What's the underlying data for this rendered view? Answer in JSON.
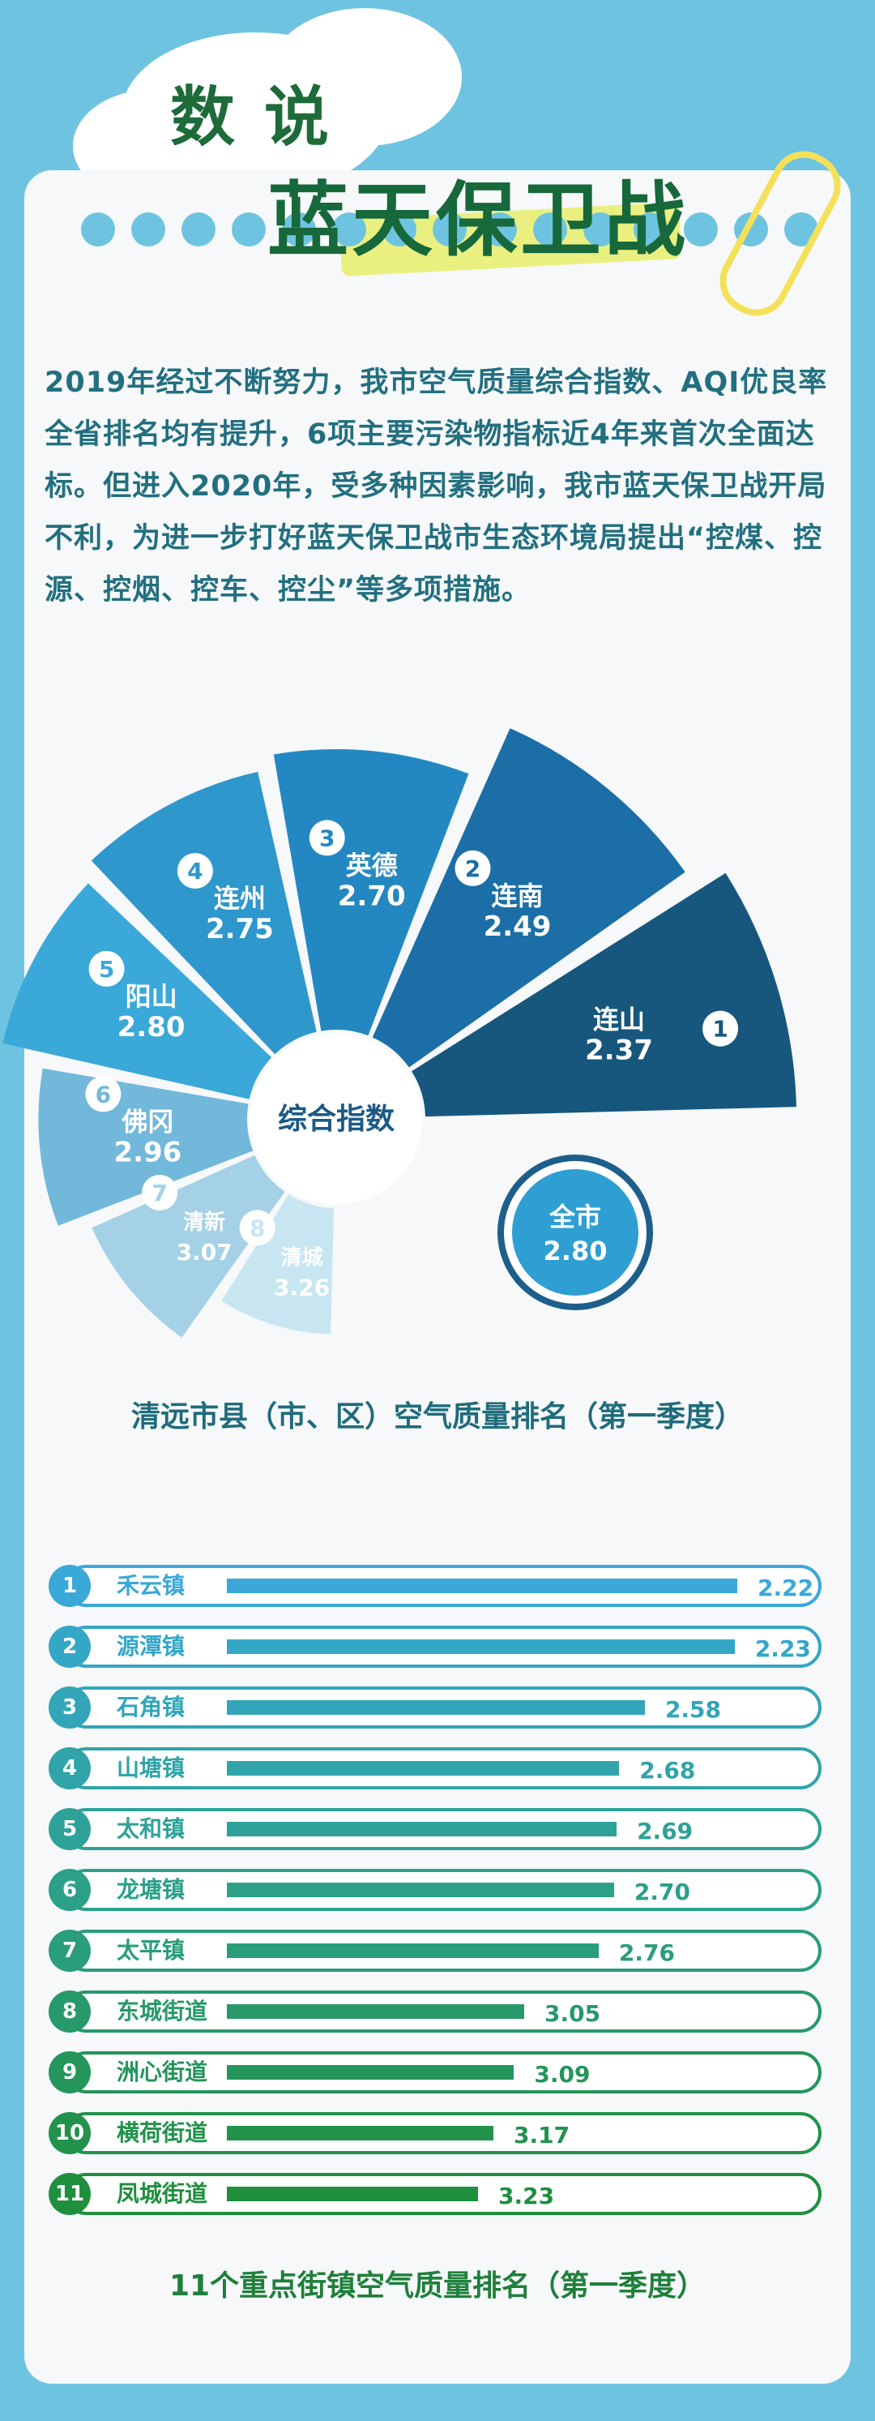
{
  "header": {
    "line1": "数 说",
    "line2": "蓝天保卫战"
  },
  "intro": "2019年经过不断努力，我市空气质量综合指数、AQI优良率全省排名均有提升，6项主要污染物指标近4年来首次全面达标。但进入2020年，受多种因素影响，我市蓝天保卫战开局不利，为进一步打好蓝天保卫战市生态环境局提出“控煤、控源、控烟、控车、控尘”等多项措施。",
  "fan": {
    "center_label": "综合指数",
    "overall": {
      "label": "全市",
      "value": "2.80"
    }
  },
  "chart_data": [
    {
      "type": "bar",
      "title": "清远市县（市、区）空气质量排名（第一季度）",
      "center_label": "综合指数",
      "categories": [
        "连山",
        "连南",
        "英德",
        "连州",
        "阳山",
        "佛冈",
        "清新",
        "清城"
      ],
      "ranks": [
        "1",
        "2",
        "3",
        "4",
        "5",
        "6",
        "7",
        "8"
      ],
      "values": [
        2.37,
        2.49,
        2.7,
        2.75,
        2.8,
        2.96,
        3.07,
        3.26
      ],
      "value_labels": [
        "2.37",
        "2.49",
        "2.70",
        "2.75",
        "2.80",
        "2.96",
        "3.07",
        "3.26"
      ],
      "colors": [
        "#17577e",
        "#1b6fa6",
        "#2388c1",
        "#2e97cc",
        "#3aa8d8",
        "#72b8db",
        "#a5d1e6",
        "#c8e6f2"
      ]
    },
    {
      "type": "bar",
      "title": "11个重点街镇空气质量排名（第一季度）",
      "categories": [
        "禾云镇",
        "源潭镇",
        "石角镇",
        "山塘镇",
        "太和镇",
        "龙塘镇",
        "太平镇",
        "东城街道",
        "洲心街道",
        "横荷街道",
        "凤城街道"
      ],
      "ranks": [
        "1",
        "2",
        "3",
        "4",
        "5",
        "6",
        "7",
        "8",
        "9",
        "10",
        "11"
      ],
      "values": [
        2.22,
        2.23,
        2.58,
        2.68,
        2.69,
        2.7,
        2.76,
        3.05,
        3.09,
        3.17,
        3.23
      ],
      "value_labels": [
        "2.22",
        "2.23",
        "2.58",
        "2.68",
        "2.69",
        "2.70",
        "2.76",
        "3.05",
        "3.09",
        "3.17",
        "3.23"
      ],
      "colors": [
        "#3aa8d8",
        "#34a7c7",
        "#32a6b8",
        "#30a4a8",
        "#2ea298",
        "#2ca089",
        "#2a9d7a",
        "#27996a",
        "#24955b",
        "#22924c",
        "#1f8f3e"
      ]
    }
  ]
}
